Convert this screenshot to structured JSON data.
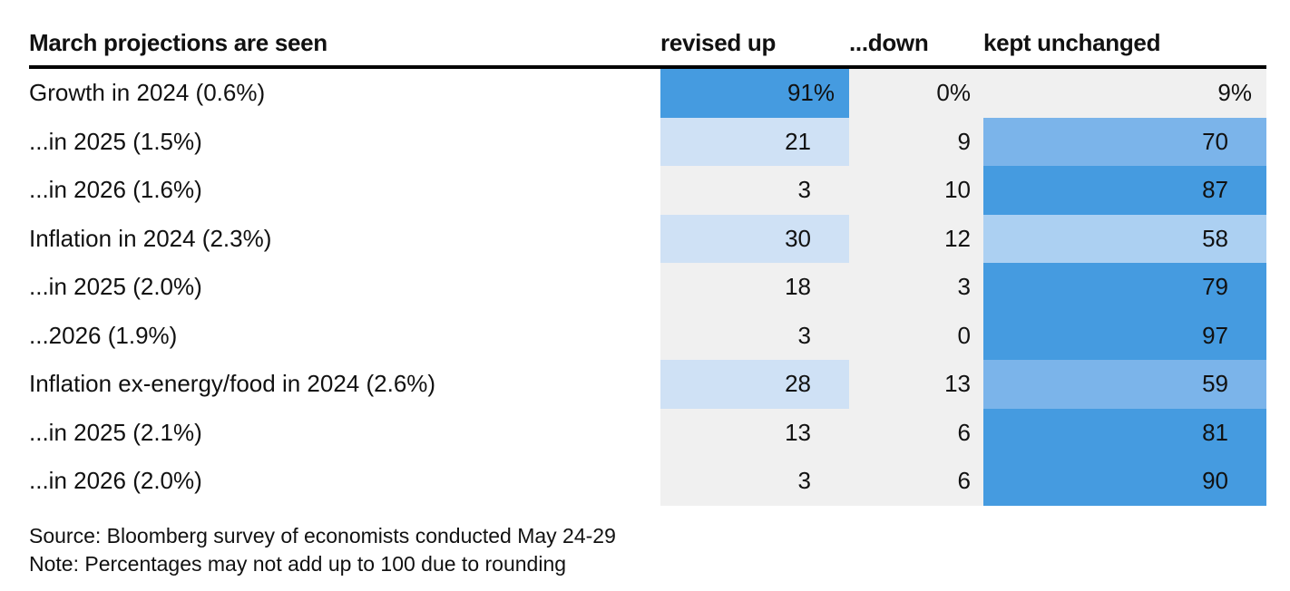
{
  "chart_data": {
    "type": "table",
    "columns": [
      "March projections are seen",
      "revised up",
      "...down",
      "kept unchanged"
    ],
    "rows": [
      {
        "label": "Growth in 2024 (0.6%)",
        "up": "91%",
        "down": "0%",
        "kept": "9%",
        "up_value": 91,
        "down_value": 0,
        "kept_value": 9
      },
      {
        "label": "...in 2025 (1.5%)",
        "up": "21",
        "down": "9",
        "kept": "70",
        "up_value": 21,
        "down_value": 9,
        "kept_value": 70
      },
      {
        "label": "...in 2026 (1.6%)",
        "up": "3",
        "down": "10",
        "kept": "87",
        "up_value": 3,
        "down_value": 10,
        "kept_value": 87
      },
      {
        "label": "Inflation in 2024 (2.3%)",
        "up": "30",
        "down": "12",
        "kept": "58",
        "up_value": 30,
        "down_value": 12,
        "kept_value": 58
      },
      {
        "label": "...in 2025 (2.0%)",
        "up": "18",
        "down": "3",
        "kept": "79",
        "up_value": 18,
        "down_value": 3,
        "kept_value": 79
      },
      {
        "label": "...2026 (1.9%)",
        "up": "3",
        "down": "0",
        "kept": "97",
        "up_value": 3,
        "down_value": 0,
        "kept_value": 97
      },
      {
        "label": "Inflation ex-energy/food in 2024 (2.6%)",
        "up": "28",
        "down": "13",
        "kept": "59",
        "up_value": 28,
        "down_value": 13,
        "kept_value": 59
      },
      {
        "label": "...in 2025 (2.1%)",
        "up": "13",
        "down": "6",
        "kept": "81",
        "up_value": 13,
        "down_value": 6,
        "kept_value": 81
      },
      {
        "label": "...in 2026 (2.0%)",
        "up": "3",
        "down": "6",
        "kept": "90",
        "up_value": 3,
        "down_value": 6,
        "kept_value": 90
      }
    ],
    "color_scale": {
      "base": "#f0f0f0",
      "light": "#cfe1f5",
      "lighter_mid": "#acd0f2",
      "mid": "#7bb4ea",
      "strong": "#459be0"
    }
  },
  "footer": {
    "source": "Source: Bloomberg survey of economists conducted May 24-29",
    "note": "Note: Percentages may not add up to 100 due to rounding"
  }
}
